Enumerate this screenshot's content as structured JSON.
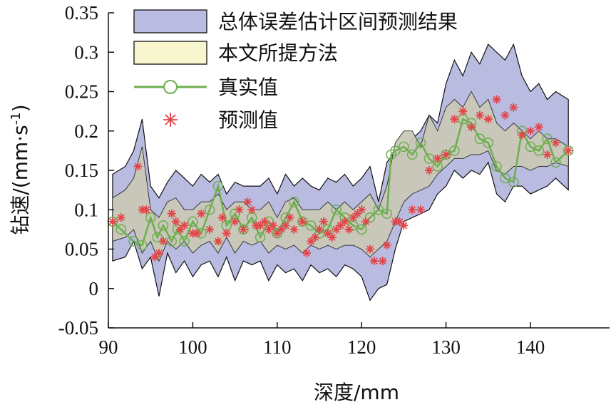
{
  "chart_data": {
    "type": "line",
    "xlabel": "深度/mm",
    "ylabel": "钻速/(mm·s",
    "ylabel_sup": "-1",
    "ylabel_end": ")",
    "xlim": [
      90,
      146
    ],
    "ylim": [
      -0.05,
      0.35
    ],
    "xticks": [
      90,
      100,
      110,
      120,
      130,
      140
    ],
    "yticks": [
      -0.05,
      0,
      0.05,
      0.1,
      0.15,
      0.2,
      0.25,
      0.3,
      0.35
    ],
    "ytick_labels": [
      "-0.05",
      "0",
      "0.05",
      "0.1",
      "0.15",
      "0.2",
      "0.25",
      "0.3",
      "0.35"
    ],
    "legend_position": "top-center",
    "legend": [
      {
        "label": "总体误差估计区间预测结果",
        "kind": "band-outer",
        "color": "#b9bce0"
      },
      {
        "label": "本文所提方法",
        "kind": "band-inner",
        "color": "#f8f6cf"
      },
      {
        "label": "真实值",
        "kind": "line-circle",
        "color": "#6dae4f"
      },
      {
        "label": "预测值",
        "kind": "asterisk",
        "color": "#e2454a"
      }
    ],
    "outer_band": {
      "x": [
        90.5,
        92,
        93,
        94,
        95,
        96,
        97,
        98,
        99,
        100,
        101,
        102,
        103,
        104,
        105,
        106,
        107,
        108,
        109,
        110,
        111,
        112,
        113,
        114,
        115,
        116,
        117,
        118,
        119,
        120,
        121,
        122,
        123,
        124,
        125,
        126,
        127,
        128,
        129,
        130,
        131,
        132,
        133,
        134,
        135,
        136,
        137,
        138,
        139,
        140,
        141,
        142,
        143,
        144.5
      ],
      "upper": [
        0.145,
        0.155,
        0.175,
        0.215,
        0.13,
        0.115,
        0.135,
        0.15,
        0.14,
        0.13,
        0.145,
        0.135,
        0.145,
        0.12,
        0.135,
        0.13,
        0.13,
        0.13,
        0.14,
        0.12,
        0.145,
        0.13,
        0.14,
        0.13,
        0.125,
        0.14,
        0.135,
        0.145,
        0.13,
        0.14,
        0.155,
        0.11,
        0.16,
        0.175,
        0.17,
        0.19,
        0.2,
        0.22,
        0.21,
        0.26,
        0.29,
        0.27,
        0.3,
        0.285,
        0.31,
        0.3,
        0.29,
        0.31,
        0.27,
        0.25,
        0.26,
        0.24,
        0.25,
        0.24
      ],
      "lower": [
        0.035,
        0.04,
        0.06,
        0.025,
        0.04,
        -0.01,
        0.045,
        0.02,
        0.035,
        0.015,
        0.03,
        0.035,
        0.015,
        0.04,
        0.01,
        0.035,
        0.03,
        0.035,
        0.01,
        0.03,
        0.02,
        0.025,
        0.01,
        0.03,
        0.02,
        0.025,
        0.015,
        0.03,
        0.025,
        0.015,
        -0.015,
        0.0,
        0.005,
        0.05,
        0.085,
        0.09,
        0.095,
        0.1,
        0.12,
        0.13,
        0.15,
        0.14,
        0.15,
        0.145,
        0.16,
        0.12,
        0.11,
        0.13,
        0.13,
        0.12,
        0.125,
        0.13,
        0.14,
        0.125
      ]
    },
    "inner_band": {
      "x": [
        90.5,
        92,
        93,
        94,
        95,
        96,
        97,
        98,
        99,
        100,
        101,
        102,
        103,
        104,
        105,
        106,
        107,
        108,
        109,
        110,
        111,
        112,
        113,
        114,
        115,
        116,
        117,
        118,
        119,
        120,
        121,
        122,
        123,
        124,
        125,
        126,
        127,
        128,
        129,
        130,
        131,
        132,
        133,
        134,
        135,
        136,
        137,
        138,
        139,
        140,
        141,
        142,
        143,
        144.5
      ],
      "upper": [
        0.115,
        0.125,
        0.14,
        0.18,
        0.1,
        0.09,
        0.11,
        0.115,
        0.1,
        0.1,
        0.11,
        0.11,
        0.12,
        0.1,
        0.11,
        0.11,
        0.1,
        0.1,
        0.11,
        0.09,
        0.11,
        0.115,
        0.1,
        0.1,
        0.1,
        0.11,
        0.1,
        0.11,
        0.1,
        0.11,
        0.12,
        0.1,
        0.13,
        0.185,
        0.2,
        0.2,
        0.18,
        0.22,
        0.2,
        0.23,
        0.24,
        0.23,
        0.25,
        0.23,
        0.24,
        0.21,
        0.2,
        0.21,
        0.2,
        0.19,
        0.2,
        0.19,
        0.19,
        0.18
      ],
      "lower": [
        0.06,
        0.065,
        0.075,
        0.045,
        0.06,
        0.035,
        0.06,
        0.05,
        0.06,
        0.045,
        0.055,
        0.06,
        0.045,
        0.065,
        0.045,
        0.06,
        0.055,
        0.06,
        0.045,
        0.055,
        0.05,
        0.055,
        0.045,
        0.055,
        0.05,
        0.055,
        0.05,
        0.055,
        0.055,
        0.05,
        0.04,
        0.05,
        0.06,
        0.085,
        0.11,
        0.12,
        0.125,
        0.13,
        0.145,
        0.155,
        0.165,
        0.165,
        0.17,
        0.17,
        0.175,
        0.15,
        0.145,
        0.155,
        0.155,
        0.15,
        0.155,
        0.155,
        0.16,
        0.155
      ]
    },
    "series": [
      {
        "name": "真实值",
        "x": [
          90.5,
          91.5,
          93,
          94,
          95,
          95.8,
          96.5,
          97.5,
          98.2,
          99,
          100,
          101,
          102,
          103,
          104,
          105,
          106,
          107,
          108,
          109,
          110,
          111,
          112,
          113,
          114,
          115,
          116,
          117,
          118,
          119,
          120,
          121,
          122,
          123,
          123.5,
          124,
          125,
          126,
          127,
          128,
          129,
          130,
          131,
          132,
          133,
          134,
          135,
          136,
          137,
          138,
          139,
          140,
          141,
          142,
          143,
          144.5
        ],
        "y": [
          0.085,
          0.075,
          0.06,
          0.055,
          0.09,
          0.065,
          0.08,
          0.06,
          0.075,
          0.06,
          0.085,
          0.07,
          0.1,
          0.13,
          0.08,
          0.095,
          0.075,
          0.09,
          0.065,
          0.085,
          0.07,
          0.09,
          0.11,
          0.085,
          0.08,
          0.07,
          0.075,
          0.1,
          0.09,
          0.08,
          0.075,
          0.09,
          0.1,
          0.095,
          0.17,
          0.175,
          0.18,
          0.17,
          0.185,
          0.165,
          0.155,
          0.17,
          0.175,
          0.215,
          0.21,
          0.19,
          0.185,
          0.155,
          0.14,
          0.135,
          0.2,
          0.18,
          0.175,
          0.19,
          0.16,
          0.175
        ]
      },
      {
        "name": "预测值",
        "x": [
          90.5,
          91.5,
          93.5,
          94,
          94.5,
          95.5,
          96,
          96.5,
          97.5,
          98,
          98.5,
          99,
          100,
          100.5,
          101,
          102,
          103,
          103.5,
          104,
          105,
          105.5,
          106,
          106.5,
          107,
          107.5,
          108,
          108.5,
          109,
          109.5,
          110,
          110.5,
          111,
          111.5,
          112,
          113,
          113.5,
          114,
          114.5,
          115,
          115.5,
          116,
          116.5,
          117,
          117.5,
          118,
          118.5,
          119,
          119.5,
          120,
          120.5,
          121,
          121.5,
          122.5,
          123,
          124,
          124.5,
          125,
          126,
          127,
          128,
          129,
          130,
          131,
          132,
          133,
          134,
          135,
          136,
          137,
          138,
          139,
          140,
          141,
          142,
          143,
          144.5
        ],
        "y": [
          0.085,
          0.09,
          0.155,
          0.1,
          0.1,
          0.04,
          0.045,
          0.06,
          0.095,
          0.085,
          0.075,
          0.08,
          0.07,
          0.07,
          0.095,
          0.075,
          0.06,
          0.09,
          0.07,
          0.085,
          0.1,
          0.075,
          0.11,
          0.1,
          0.08,
          0.08,
          0.085,
          0.075,
          0.08,
          0.07,
          0.075,
          0.08,
          0.09,
          0.075,
          0.085,
          0.045,
          0.06,
          0.065,
          0.075,
          0.085,
          0.07,
          0.065,
          0.075,
          0.08,
          0.085,
          0.075,
          0.09,
          0.095,
          0.1,
          0.085,
          0.05,
          0.035,
          0.035,
          0.055,
          0.085,
          0.085,
          0.08,
          0.1,
          0.1,
          0.15,
          0.165,
          0.17,
          0.215,
          0.225,
          0.205,
          0.22,
          0.215,
          0.24,
          0.22,
          0.23,
          0.195,
          0.2,
          0.205,
          0.17,
          0.185,
          0.175
        ]
      }
    ]
  }
}
